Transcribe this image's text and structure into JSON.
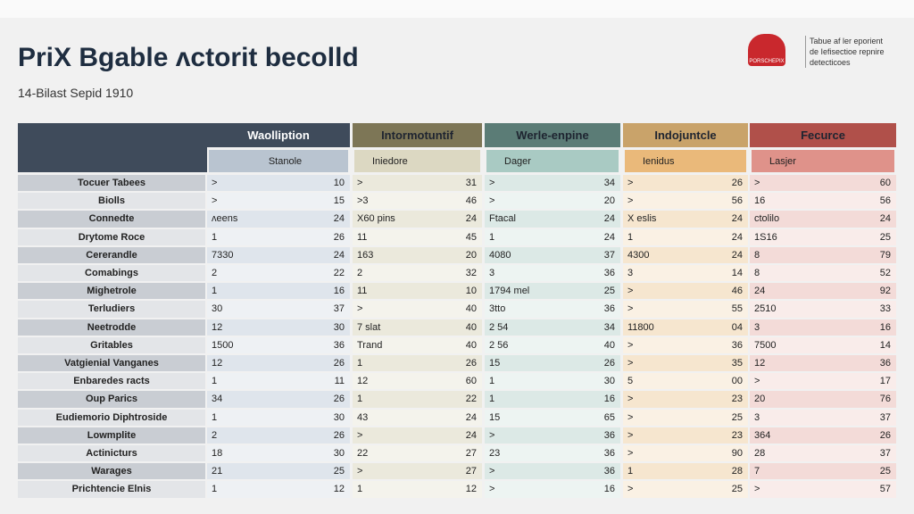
{
  "header": {
    "title": "PriX Bgable ᴧctorit becolld",
    "subtitle": "14-Bilast Sepid 1910",
    "logo": "PORSCHEPIX",
    "note": [
      "Tabue af ler eporient",
      "de Iefisectioe repnire",
      "detecticoes"
    ]
  },
  "table": {
    "groups": [
      {
        "title": "Waolliption",
        "subtitle": "Stanole"
      },
      {
        "title": "Intormotuntif",
        "subtitle": "Iniedore"
      },
      {
        "title": "Werle-enpine",
        "subtitle": "Dager"
      },
      {
        "title": "Indojuntcle",
        "subtitle": "Ienidus"
      },
      {
        "title": "Fecurce",
        "subtitle": "Lasjer"
      }
    ],
    "rows": [
      {
        "label": "Tocuer Tabees",
        "cells": [
          [
            ">",
            "10"
          ],
          [
            ">",
            "31"
          ],
          [
            ">",
            "34"
          ],
          [
            ">",
            "26"
          ],
          [
            ">",
            "60"
          ]
        ]
      },
      {
        "label": "Biolls",
        "cells": [
          [
            ">",
            "15"
          ],
          [
            ">3",
            "46"
          ],
          [
            ">",
            "20"
          ],
          [
            ">",
            "56"
          ],
          [
            "16",
            "56"
          ]
        ]
      },
      {
        "label": "Connedte",
        "cells": [
          [
            "ᴧeens",
            "24"
          ],
          [
            "X60 pins",
            "24"
          ],
          [
            "Ftacal",
            "24"
          ],
          [
            "X eslis",
            "24"
          ],
          [
            "ctolilo",
            "24"
          ]
        ]
      },
      {
        "label": "Drytome Roce",
        "cells": [
          [
            "1",
            "26"
          ],
          [
            "11",
            "45"
          ],
          [
            "1",
            "24"
          ],
          [
            "1",
            "24"
          ],
          [
            "1S16",
            "25"
          ]
        ]
      },
      {
        "label": "Cererandle",
        "cells": [
          [
            "7330",
            "24"
          ],
          [
            "163",
            "20"
          ],
          [
            "4080",
            "37"
          ],
          [
            "4300",
            "24"
          ],
          [
            "8",
            "79"
          ]
        ]
      },
      {
        "label": "Comabings",
        "cells": [
          [
            "2",
            "22"
          ],
          [
            "2",
            "32"
          ],
          [
            "3",
            "36"
          ],
          [
            "3",
            "14"
          ],
          [
            "8",
            "52"
          ]
        ]
      },
      {
        "label": "Mighetrole",
        "cells": [
          [
            "1",
            "16"
          ],
          [
            "11",
            "10"
          ],
          [
            "1794 mel",
            "25"
          ],
          [
            ">",
            "46"
          ],
          [
            "24",
            "92"
          ]
        ]
      },
      {
        "label": "Terludiers",
        "cells": [
          [
            "30",
            "37"
          ],
          [
            ">",
            "40"
          ],
          [
            "3tto",
            "36"
          ],
          [
            ">",
            "55"
          ],
          [
            "2510",
            "33"
          ]
        ]
      },
      {
        "label": "Neetrodde",
        "cells": [
          [
            "12",
            "30"
          ],
          [
            "7 slat",
            "40"
          ],
          [
            "2 54",
            "34"
          ],
          [
            "11800",
            "04"
          ],
          [
            "3",
            "16"
          ]
        ]
      },
      {
        "label": "Gritables",
        "cells": [
          [
            "1500",
            "36"
          ],
          [
            "Trand",
            "40"
          ],
          [
            "2 56",
            "40"
          ],
          [
            ">",
            "36"
          ],
          [
            "7500",
            "14"
          ]
        ]
      },
      {
        "label": "Vatgienial Vanganes",
        "cells": [
          [
            "12",
            "26"
          ],
          [
            "1",
            "26"
          ],
          [
            "15",
            "26"
          ],
          [
            ">",
            "35"
          ],
          [
            "12",
            "36"
          ]
        ]
      },
      {
        "label": "Enbaredes racts",
        "cells": [
          [
            "1",
            "11"
          ],
          [
            "12",
            "60"
          ],
          [
            "1",
            "30"
          ],
          [
            "5",
            "00"
          ],
          [
            ">",
            "17"
          ]
        ]
      },
      {
        "label": "Oup Parics",
        "cells": [
          [
            "34",
            "26"
          ],
          [
            "1",
            "22"
          ],
          [
            "1",
            "16"
          ],
          [
            ">",
            "23"
          ],
          [
            "20",
            "76"
          ]
        ]
      },
      {
        "label": "Eudiemorio Diphtroside",
        "cells": [
          [
            "1",
            "30"
          ],
          [
            "43",
            "24"
          ],
          [
            "15",
            "65"
          ],
          [
            ">",
            "25"
          ],
          [
            "3",
            "37"
          ]
        ]
      },
      {
        "label": "Lowmplite",
        "cells": [
          [
            "2",
            "26"
          ],
          [
            ">",
            "24"
          ],
          [
            ">",
            "36"
          ],
          [
            ">",
            "23"
          ],
          [
            "364",
            "26"
          ]
        ]
      },
      {
        "label": "Actinicturs",
        "cells": [
          [
            "18",
            "30"
          ],
          [
            "22",
            "27"
          ],
          [
            "23",
            "36"
          ],
          [
            ">",
            "90"
          ],
          [
            "28",
            "37"
          ]
        ]
      },
      {
        "label": "Warages",
        "cells": [
          [
            "21",
            "25"
          ],
          [
            ">",
            "27"
          ],
          [
            ">",
            "36"
          ],
          [
            "1",
            "28"
          ],
          [
            "7",
            "25"
          ]
        ]
      },
      {
        "label": "Prichtencie Elnis",
        "cells": [
          [
            "1",
            "12"
          ],
          [
            "1",
            "12"
          ],
          [
            ">",
            "16"
          ],
          [
            ">",
            "25"
          ],
          [
            ">",
            "57"
          ]
        ]
      }
    ]
  }
}
